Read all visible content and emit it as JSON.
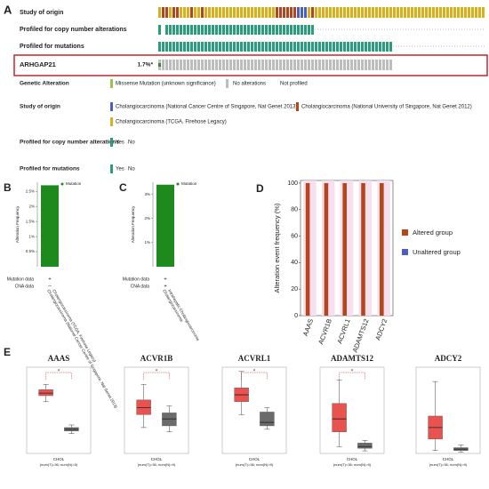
{
  "oncoprint": {
    "panel": "A",
    "tracks": [
      "Study of origin",
      "Profiled for copy number alterations",
      "Profiled for mutations"
    ],
    "gene": "ARHGAP21",
    "gene_percent": "1.7%*",
    "legend": {
      "alteration_title": "Genetic Alteration",
      "alteration_items": [
        "Missense Mutation (unknown significance)",
        "No alterations",
        "Not profiled"
      ],
      "study_title": "Study of origin",
      "study_items": [
        "Cholangiocarcinoma (National Cancer Centre of Singapore, Nat Genet 2013)",
        "Cholangiocarcinoma (National University of Singapore, Nat Genet 2012)",
        "Cholangiocarcinoma (TCGA, Firehose Legacy)"
      ],
      "cna_title": "Profiled for copy number alterations",
      "mut_title": "Profiled for mutations",
      "yes": "Yes",
      "no": "No"
    }
  },
  "chart_data": [
    {
      "type": "bar",
      "panel": "B",
      "ylabel": "Alteration Frequency",
      "legend": "Mutation",
      "color": "#1e8a1e",
      "categories": [
        "Cholangiocarcinoma (TCGA, Firehose Legacy)"
      ],
      "category_notes": [
        "Cholangiocarcinoma (National Cancer Centre of Singapore, Nat Genet 2013)"
      ],
      "values": [
        2.7
      ],
      "ylim": [
        0,
        2.8
      ],
      "yticks": [
        {
          "value": 0.5,
          "label": "0.5%"
        },
        {
          "value": 1,
          "label": "1%"
        },
        {
          "value": 1.5,
          "label": "1.5%"
        },
        {
          "value": 2,
          "label": "2%"
        },
        {
          "value": 2.5,
          "label": "2.5%"
        }
      ],
      "rows": [
        {
          "label": "Mutation data",
          "marks": [
            "+"
          ]
        },
        {
          "label": "CNA data",
          "marks": [
            "–"
          ]
        }
      ]
    },
    {
      "type": "bar",
      "panel": "C",
      "ylabel": "Alteration Frequency",
      "legend": "Mutation",
      "color": "#1e8a1e",
      "categories": [
        "Intrahepatic Cholangiocarcinoma"
      ],
      "category_notes": [
        "Cholangiocarcinoma"
      ],
      "values": [
        3.4
      ],
      "ylim": [
        0,
        3.5
      ],
      "yticks": [
        {
          "value": 1,
          "label": "1%"
        },
        {
          "value": 2,
          "label": "2%"
        },
        {
          "value": 3,
          "label": "3%"
        }
      ],
      "rows": [
        {
          "label": "Mutation data",
          "marks": [
            "+"
          ]
        },
        {
          "label": "CNA data",
          "marks": [
            "+"
          ]
        }
      ]
    },
    {
      "type": "groupbar",
      "panel": "D",
      "ylabel": "Alteration event frequency (%)",
      "categories": [
        "AAAS",
        "ACVR1B",
        "ACVRL1",
        "ADAMTS12",
        "ADCY2"
      ],
      "series": [
        {
          "name": "Altered group",
          "color": "#b5451b",
          "values": [
            100,
            100,
            100,
            100,
            100
          ]
        },
        {
          "name": "Unaltered group",
          "color": "#4a5fc1",
          "values": [
            0,
            0,
            0,
            0,
            0
          ]
        }
      ],
      "ylim": [
        0,
        102
      ],
      "yticks": [
        0,
        20,
        40,
        60,
        80,
        100
      ]
    },
    {
      "type": "box",
      "panel": "E",
      "title": "AAAS",
      "xlabel": "CHOL",
      "subtitle": "(num(T)=36; num(N)=9)",
      "annotation": "*",
      "ylim": [
        0,
        10
      ],
      "series": [
        {
          "color": "#e8534f",
          "stats": {
            "whislo": 6.0,
            "q1": 6.7,
            "med": 7.0,
            "q3": 7.4,
            "whishi": 8.0
          }
        },
        {
          "color": "#6b6b6b",
          "stats": {
            "whislo": 2.3,
            "q1": 2.6,
            "med": 2.8,
            "q3": 3.0,
            "whishi": 3.3
          }
        }
      ]
    },
    {
      "type": "box",
      "title": "ACVR1B",
      "xlabel": "CHOL",
      "subtitle": "(num(T)=36; num(N)=9)",
      "annotation": "*",
      "ylim": [
        0,
        10
      ],
      "series": [
        {
          "color": "#e8534f",
          "stats": {
            "whislo": 3.0,
            "q1": 4.5,
            "med": 5.3,
            "q3": 6.2,
            "whishi": 8.0
          }
        },
        {
          "color": "#6b6b6b",
          "stats": {
            "whislo": 2.5,
            "q1": 3.2,
            "med": 4.0,
            "q3": 4.7,
            "whishi": 5.5
          }
        }
      ]
    },
    {
      "type": "box",
      "title": "ACVRL1",
      "xlabel": "CHOL",
      "subtitle": "(num(T)=36; num(N)=9)",
      "annotation": "*",
      "ylim": [
        0,
        10
      ],
      "series": [
        {
          "color": "#e8534f",
          "stats": {
            "whislo": 4.5,
            "q1": 6.0,
            "med": 6.8,
            "q3": 7.6,
            "whishi": 9.5
          }
        },
        {
          "color": "#6b6b6b",
          "stats": {
            "whislo": 2.8,
            "q1": 3.2,
            "med": 3.6,
            "q3": 4.8,
            "whishi": 5.3
          }
        }
      ]
    },
    {
      "type": "box",
      "title": "ADAMTS12",
      "xlabel": "CHOL",
      "subtitle": "(num(T)=36; num(N)=9)",
      "annotation": "*",
      "ylim": [
        0,
        10
      ],
      "series": [
        {
          "color": "#e8534f",
          "stats": {
            "whislo": 0.8,
            "q1": 2.5,
            "med": 4.0,
            "q3": 5.8,
            "whishi": 8.5
          }
        },
        {
          "color": "#6b6b6b",
          "stats": {
            "whislo": 0.3,
            "q1": 0.6,
            "med": 0.8,
            "q3": 1.2,
            "whishi": 1.5
          }
        }
      ]
    },
    {
      "type": "box",
      "title": "ADCY2",
      "xlabel": "CHOL",
      "subtitle": "(num(T)=36; num(N)=9)",
      "ylim": [
        0,
        3
      ],
      "series": [
        {
          "color": "#e8534f",
          "stats": {
            "whislo": 0.1,
            "q1": 0.5,
            "med": 0.9,
            "q3": 1.3,
            "whishi": 2.5
          }
        },
        {
          "color": "#6b6b6b",
          "stats": {
            "whislo": 0.05,
            "q1": 0.1,
            "med": 0.15,
            "q3": 0.2,
            "whishi": 0.3
          }
        }
      ]
    }
  ]
}
